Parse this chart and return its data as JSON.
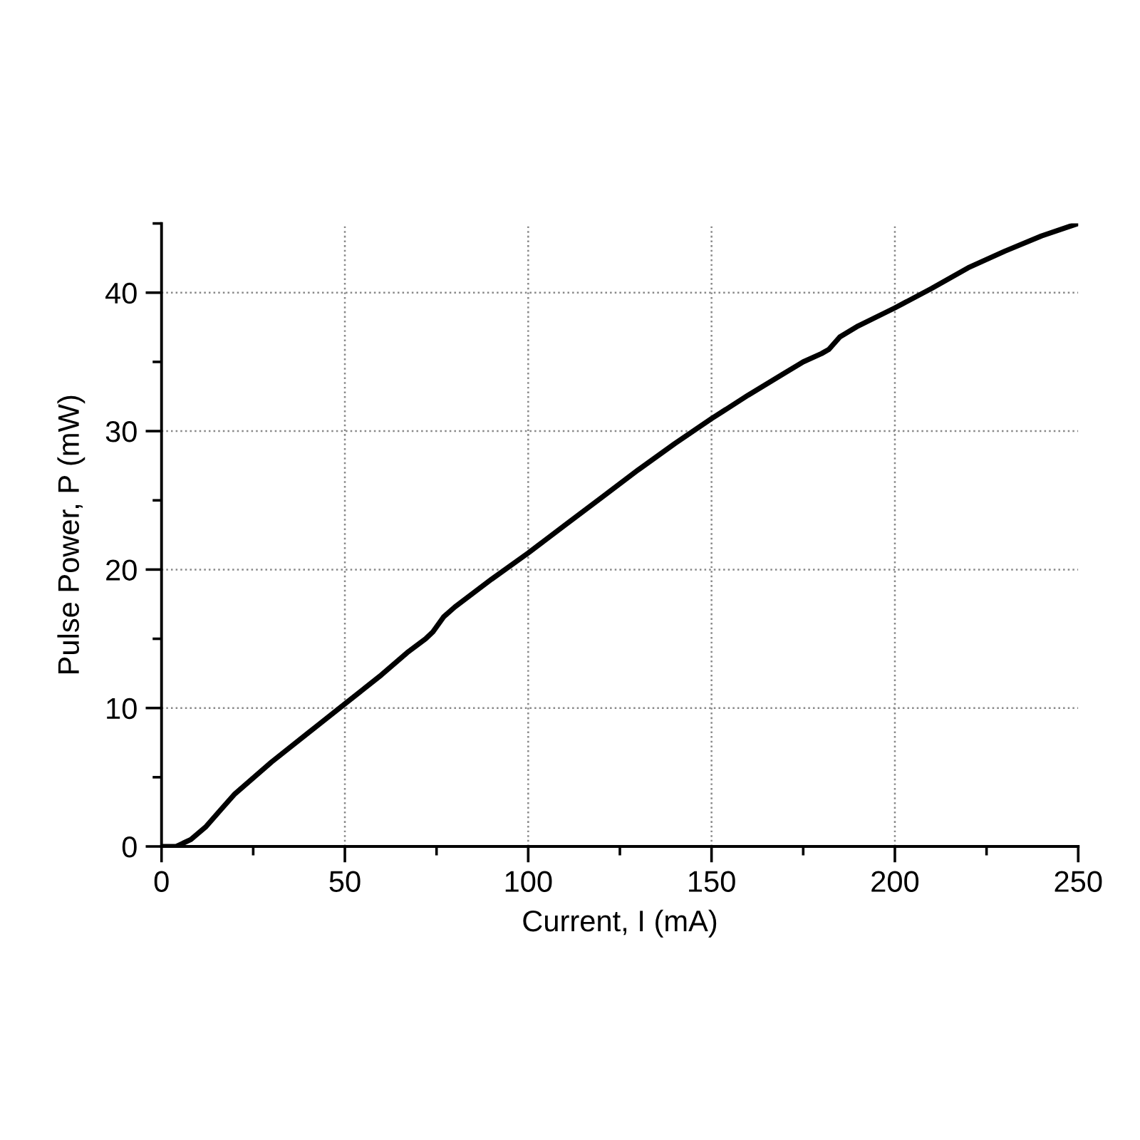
{
  "chart_data": {
    "type": "line",
    "xlabel": "Current, I (mA)",
    "ylabel": "Pulse Power, P (mW)",
    "x": [
      0,
      4,
      8,
      12,
      16,
      20,
      30,
      40,
      50,
      60,
      67,
      72,
      74,
      77,
      80,
      90,
      100,
      110,
      120,
      130,
      140,
      150,
      160,
      170,
      175,
      180,
      182,
      185,
      190,
      200,
      210,
      220,
      230,
      240,
      250
    ],
    "series": [
      {
        "color": "#000000",
        "values": [
          0,
          0,
          0.5,
          1.4,
          2.6,
          3.8,
          6.1,
          8.2,
          10.3,
          12.4,
          14.0,
          15.0,
          15.5,
          16.6,
          17.3,
          19.3,
          21.2,
          23.2,
          25.2,
          27.2,
          29.1,
          30.9,
          32.6,
          34.2,
          35.0,
          35.6,
          35.9,
          36.8,
          37.6,
          38.9,
          40.3,
          41.8,
          43.0,
          44.1,
          45.0
        ]
      }
    ],
    "xlim": [
      0,
      250
    ],
    "ylim": [
      0,
      45
    ],
    "xticks": [
      0,
      {
        "value": 25,
        "label": null
      },
      50,
      {
        "value": 75,
        "label": null
      },
      100,
      {
        "value": 125,
        "label": null
      },
      150,
      {
        "value": 175,
        "label": null
      },
      200,
      {
        "value": 225,
        "label": null
      },
      250
    ],
    "yticks": [
      0,
      {
        "value": 5,
        "label": null
      },
      10,
      {
        "value": 15,
        "label": null
      },
      20,
      {
        "value": 25,
        "label": null
      },
      30,
      {
        "value": 35,
        "label": null
      },
      40,
      {
        "value": 45,
        "label": null
      }
    ],
    "grid": true,
    "line_style": "solid"
  }
}
